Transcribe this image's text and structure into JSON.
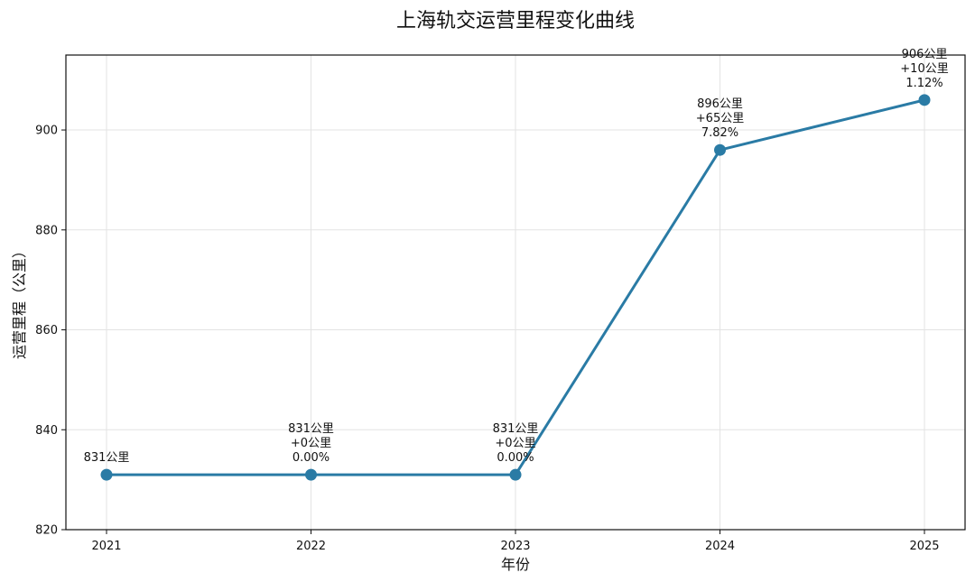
{
  "chart_data": {
    "type": "line",
    "title": "上海轨交运营里程变化曲线",
    "xlabel": "年份",
    "ylabel": "运营里程（公里）",
    "categories": [
      "2021",
      "2022",
      "2023",
      "2024",
      "2025"
    ],
    "series": [
      {
        "values": [
          831,
          831,
          831,
          896,
          906
        ]
      }
    ],
    "ylim": [
      820,
      915
    ],
    "yticks": [
      "820",
      "840",
      "860",
      "880",
      "900"
    ],
    "ytick_values": [
      820,
      840,
      860,
      880,
      900
    ],
    "grid": true,
    "data_labels": [
      [
        "831公里"
      ],
      [
        "831公里",
        "+0公里",
        "0.00%"
      ],
      [
        "831公里",
        "+0公里",
        "0.00%"
      ],
      [
        "896公里",
        "+65公里",
        "7.82%"
      ],
      [
        "906公里",
        "+10公里",
        "1.12%"
      ]
    ],
    "colors": {
      "series": "#2a7ba5"
    }
  }
}
